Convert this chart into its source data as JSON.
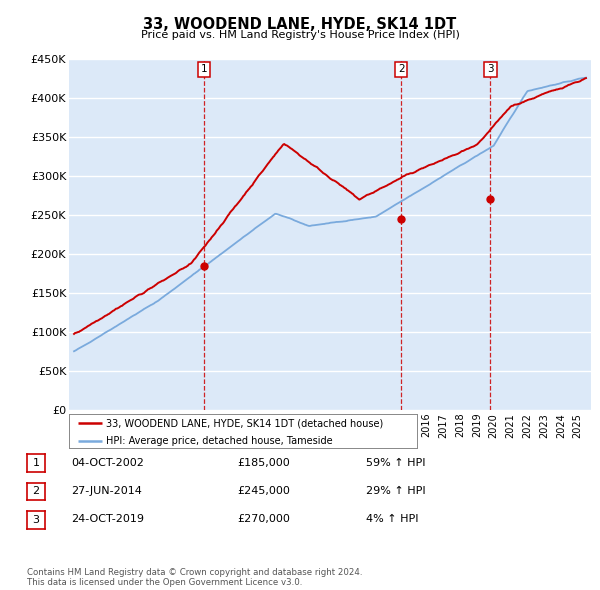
{
  "title": "33, WOODEND LANE, HYDE, SK14 1DT",
  "subtitle": "Price paid vs. HM Land Registry's House Price Index (HPI)",
  "ylim": [
    0,
    450000
  ],
  "yticks": [
    0,
    50000,
    100000,
    150000,
    200000,
    250000,
    300000,
    350000,
    400000,
    450000
  ],
  "ytick_labels": [
    "£0",
    "£50K",
    "£100K",
    "£150K",
    "£200K",
    "£250K",
    "£300K",
    "£350K",
    "£400K",
    "£450K"
  ],
  "xlim_start": 1994.7,
  "xlim_end": 2025.8,
  "plot_bg_color": "#dce9f8",
  "grid_color": "#ffffff",
  "sale_dates": [
    2002.75,
    2014.49,
    2019.81
  ],
  "sale_prices": [
    185000,
    245000,
    270000
  ],
  "sale_labels": [
    "1",
    "2",
    "3"
  ],
  "vline_color": "#cc0000",
  "hpi_color": "#7aaadd",
  "price_line_color": "#cc0000",
  "legend_line1_color": "#cc0000",
  "legend_line2_color": "#7aaadd",
  "legend_line1_label": "33, WOODEND LANE, HYDE, SK14 1DT (detached house)",
  "legend_line2_label": "HPI: Average price, detached house, Tameside",
  "table_data": [
    [
      "1",
      "04-OCT-2002",
      "£185,000",
      "59% ↑ HPI"
    ],
    [
      "2",
      "27-JUN-2014",
      "£245,000",
      "29% ↑ HPI"
    ],
    [
      "3",
      "24-OCT-2019",
      "£270,000",
      "4% ↑ HPI"
    ]
  ],
  "footer": "Contains HM Land Registry data © Crown copyright and database right 2024.\nThis data is licensed under the Open Government Licence v3.0."
}
